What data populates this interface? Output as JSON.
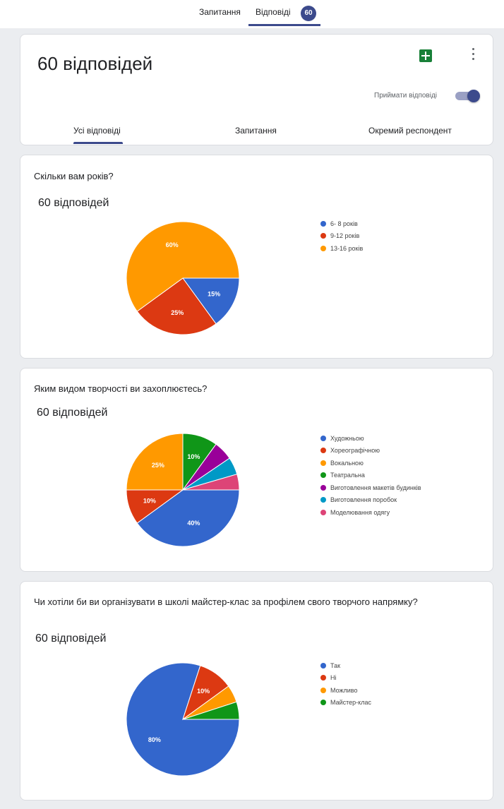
{
  "top_tabs": [
    {
      "label": "Запитання"
    },
    {
      "label": "Відповіді"
    }
  ],
  "responses_badge": "60",
  "summary": {
    "title": "60 відповідей",
    "accepting_label": "Приймати відповіді",
    "subtabs": [
      {
        "label": "Усі відповіді"
      },
      {
        "label": "Запитання"
      },
      {
        "label": "Окремий респондент"
      }
    ]
  },
  "colors": {
    "accent": "#3c4a8c",
    "blue": "#3366cc",
    "red": "#dc3912",
    "orange": "#ff9900",
    "green": "#109618",
    "purple": "#990099",
    "teal": "#0099c6",
    "pink": "#dd4477"
  },
  "icons": {
    "sheets": "google-sheets-icon",
    "more": "more-vert-icon"
  },
  "questions": [
    {
      "title": "Скільки вам років?",
      "count": "60 відповідей",
      "legend": [
        "6- 8 років",
        "9-12 років",
        "13-16 років"
      ]
    },
    {
      "title": "Яким видом творчості ви захоплюєтесь?",
      "count": "60 відповідей",
      "legend": [
        "Художньою",
        "Хореографічною",
        "Вокальною",
        "Театральна",
        "Виготовлення макетів будинків",
        "Виготовлення поробок",
        "Моделювання одягу"
      ]
    },
    {
      "title": "Чи хотіли би ви організувати в школі майстер-клас за профілем свого творчого напрямку?",
      "count": "60 відповідей",
      "legend": [
        "Так",
        "Ні",
        "Можливо",
        "Майстер-клас"
      ]
    }
  ],
  "chart_data": [
    {
      "type": "pie",
      "labels": [
        "6- 8 років",
        "9-12 років",
        "13-16 років"
      ],
      "values": [
        15,
        25,
        60
      ],
      "value_labels": [
        "15%",
        "25%",
        "60%"
      ],
      "colors": [
        "#3366cc",
        "#dc3912",
        "#ff9900"
      ],
      "legend_position": "right"
    },
    {
      "type": "pie",
      "labels": [
        "Художньою",
        "Хореографічною",
        "Вокальною",
        "Театральна",
        "Виготовлення макетів будинків",
        "Виготовлення поробок",
        "Моделювання одягу"
      ],
      "values": [
        40,
        10,
        25,
        10,
        5.5,
        5,
        4.5
      ],
      "value_labels": [
        "40%",
        "10%",
        "25%",
        "10%",
        "",
        "",
        ""
      ],
      "colors": [
        "#3366cc",
        "#dc3912",
        "#ff9900",
        "#109618",
        "#990099",
        "#0099c6",
        "#dd4477"
      ],
      "legend_position": "right"
    },
    {
      "type": "pie",
      "labels": [
        "Так",
        "Ні",
        "Можливо",
        "Майстер-клас"
      ],
      "values": [
        80,
        10,
        5,
        5
      ],
      "value_labels": [
        "80%",
        "10%",
        "",
        ""
      ],
      "colors": [
        "#3366cc",
        "#dc3912",
        "#ff9900",
        "#109618"
      ],
      "legend_position": "right"
    }
  ]
}
